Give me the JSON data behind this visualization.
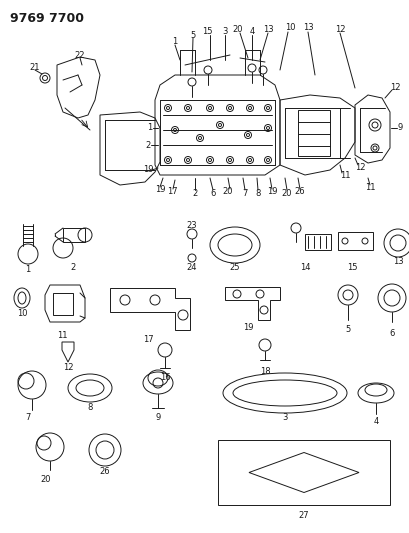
{
  "title": "9769 7700",
  "bg_color": "#ffffff",
  "line_color": "#1a1a1a",
  "title_fontsize": 10,
  "title_bold": true,
  "fig_width": 4.1,
  "fig_height": 5.33,
  "dpi": 100
}
